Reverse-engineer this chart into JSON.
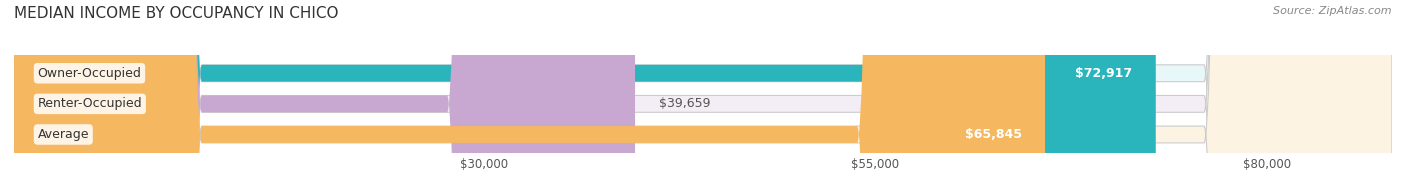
{
  "title": "MEDIAN INCOME BY OCCUPANCY IN CHICO",
  "source": "Source: ZipAtlas.com",
  "categories": [
    "Owner-Occupied",
    "Renter-Occupied",
    "Average"
  ],
  "values": [
    72917,
    39659,
    65845
  ],
  "labels": [
    "$72,917",
    "$39,659",
    "$65,845"
  ],
  "bar_colors": [
    "#2ab5bc",
    "#c8a8d0",
    "#f5b860"
  ],
  "bar_bg_colors": [
    "#e8f7f8",
    "#f3edf5",
    "#fdf3e3"
  ],
  "x_min": 0,
  "x_max": 88000,
  "x_ticks": [
    30000,
    55000,
    80000
  ],
  "x_tick_labels": [
    "$30,000",
    "$55,000",
    "$80,000"
  ],
  "title_fontsize": 11,
  "source_fontsize": 8,
  "label_fontsize": 9,
  "tick_fontsize": 8.5,
  "bar_height": 0.55,
  "figwidth": 14.06,
  "figheight": 1.96
}
